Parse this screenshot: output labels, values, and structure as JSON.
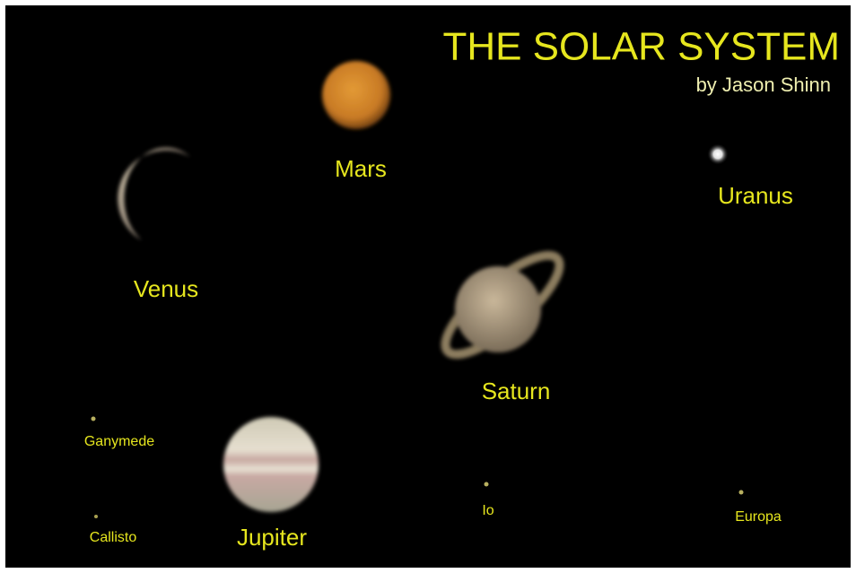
{
  "header": {
    "title": "THE SOLAR SYSTEM",
    "author": "by Jason Shinn"
  },
  "bodies": [
    {
      "label": "Mars"
    },
    {
      "label": "Venus"
    },
    {
      "label": "Uranus"
    },
    {
      "label": "Saturn"
    },
    {
      "label": "Jupiter"
    },
    {
      "label": "Ganymede"
    },
    {
      "label": "Callisto"
    },
    {
      "label": "Io"
    },
    {
      "label": "Europa"
    }
  ]
}
